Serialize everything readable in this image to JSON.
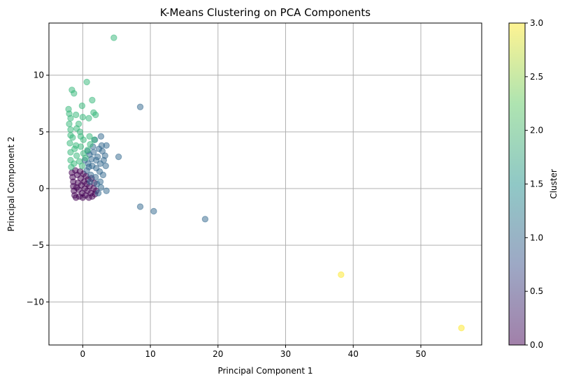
{
  "chart_data": {
    "type": "scatter",
    "title": "K-Means Clustering on PCA Components",
    "xlabel": "Principal Component 1",
    "ylabel": "Principal Component 2",
    "xlim": [
      -5,
      59
    ],
    "ylim": [
      -13.8,
      14.6
    ],
    "xticks": [
      0,
      10,
      20,
      30,
      40,
      50
    ],
    "xtick_labels": [
      "0",
      "10",
      "20",
      "30",
      "40",
      "50"
    ],
    "yticks": [
      -10,
      -5,
      0,
      5,
      10
    ],
    "ytick_labels": [
      "−10",
      "−5",
      "0",
      "5",
      "10"
    ],
    "grid": true,
    "point_alpha": 0.5,
    "colorbar": {
      "label": "Cluster",
      "range": [
        0.0,
        3.0
      ],
      "ticks": [
        0.0,
        0.5,
        1.0,
        1.5,
        2.0,
        2.5,
        3.0
      ],
      "tick_labels": [
        "0.0",
        "0.5",
        "1.0",
        "1.5",
        "2.0",
        "2.5",
        "3.0"
      ],
      "colormap": "viridis",
      "stops": [
        "#440154",
        "#3b528b",
        "#21918c",
        "#5ec962",
        "#fde725"
      ]
    },
    "cluster_colors": {
      "0": "#440154",
      "1": "#31688e",
      "2": "#35b779",
      "3": "#fde725"
    },
    "clusters": [
      {
        "cluster": 0,
        "points": [
          [
            -1.6,
            1.4
          ],
          [
            -1.5,
            1.0
          ],
          [
            -1.4,
            0.6
          ],
          [
            -1.4,
            0.2
          ],
          [
            -1.3,
            -0.2
          ],
          [
            -1.2,
            -0.6
          ],
          [
            -1.0,
            -0.8
          ],
          [
            -0.8,
            1.2
          ],
          [
            -0.7,
            0.5
          ],
          [
            -0.6,
            -0.1
          ],
          [
            -0.5,
            -0.7
          ],
          [
            -0.3,
            0.9
          ],
          [
            -0.2,
            0.3
          ],
          [
            -0.1,
            -0.4
          ],
          [
            0.0,
            -0.8
          ],
          [
            0.2,
            0.6
          ],
          [
            0.3,
            0.0
          ],
          [
            0.4,
            -0.6
          ],
          [
            0.6,
            0.4
          ],
          [
            0.7,
            -0.2
          ],
          [
            0.9,
            -0.8
          ],
          [
            1.0,
            0.2
          ],
          [
            1.2,
            -0.4
          ],
          [
            1.4,
            -0.7
          ],
          [
            1.6,
            0.0
          ],
          [
            1.8,
            -0.5
          ],
          [
            -1.1,
            1.6
          ],
          [
            -0.4,
            1.5
          ],
          [
            0.5,
            1.1
          ],
          [
            1.3,
            0.9
          ],
          [
            -0.9,
            0.1
          ],
          [
            0.1,
            1.3
          ],
          [
            0.8,
            0.8
          ],
          [
            1.7,
            0.5
          ],
          [
            2.0,
            -0.2
          ]
        ]
      },
      {
        "cluster": 1,
        "points": [
          [
            8.5,
            7.2
          ],
          [
            2.7,
            4.6
          ],
          [
            5.3,
            2.8
          ],
          [
            3.5,
            3.8
          ],
          [
            2.4,
            3.5
          ],
          [
            1.8,
            4.3
          ],
          [
            0.8,
            2.2
          ],
          [
            1.4,
            2.0
          ],
          [
            2.0,
            1.8
          ],
          [
            2.6,
            2.2
          ],
          [
            3.1,
            2.5
          ],
          [
            3.4,
            2.0
          ],
          [
            0.6,
            1.6
          ],
          [
            1.2,
            1.2
          ],
          [
            1.9,
            1.0
          ],
          [
            2.5,
            1.5
          ],
          [
            0.3,
            2.5
          ],
          [
            1.0,
            3.0
          ],
          [
            1.6,
            3.2
          ],
          [
            2.2,
            2.8
          ],
          [
            2.9,
            3.3
          ],
          [
            3.3,
            2.9
          ],
          [
            1.1,
            0.6
          ],
          [
            2.1,
            0.4
          ],
          [
            2.6,
            0.6
          ],
          [
            3.0,
            1.2
          ],
          [
            2.3,
            -0.4
          ],
          [
            3.5,
            -0.2
          ],
          [
            2.7,
            0.1
          ],
          [
            8.5,
            -1.6
          ],
          [
            10.5,
            -2.0
          ],
          [
            18.1,
            -2.7
          ],
          [
            2.0,
            2.5
          ],
          [
            1.5,
            3.7
          ],
          [
            0.7,
            3.3
          ],
          [
            2.8,
            3.8
          ],
          [
            1.3,
            2.6
          ],
          [
            0.9,
            1.9
          ]
        ]
      },
      {
        "cluster": 2,
        "points": [
          [
            4.6,
            13.3
          ],
          [
            0.6,
            9.4
          ],
          [
            -1.6,
            8.7
          ],
          [
            -1.3,
            8.4
          ],
          [
            1.4,
            7.8
          ],
          [
            -2.1,
            7.0
          ],
          [
            -0.1,
            7.3
          ],
          [
            -2.0,
            6.6
          ],
          [
            -1.0,
            6.5
          ],
          [
            1.6,
            6.7
          ],
          [
            1.9,
            6.5
          ],
          [
            -1.8,
            6.2
          ],
          [
            0.0,
            6.3
          ],
          [
            0.9,
            6.2
          ],
          [
            -2.0,
            5.7
          ],
          [
            -0.6,
            5.7
          ],
          [
            -1.8,
            5.2
          ],
          [
            -0.9,
            5.3
          ],
          [
            -0.4,
            5.0
          ],
          [
            -1.8,
            4.7
          ],
          [
            -0.3,
            4.6
          ],
          [
            1.0,
            4.6
          ],
          [
            1.7,
            4.3
          ],
          [
            0.1,
            4.3
          ],
          [
            -1.9,
            4.0
          ],
          [
            -1.0,
            3.8
          ],
          [
            -0.3,
            3.7
          ],
          [
            1.1,
            3.9
          ],
          [
            -1.8,
            3.2
          ],
          [
            -0.9,
            2.9
          ],
          [
            0.1,
            3.1
          ],
          [
            0.7,
            3.4
          ],
          [
            -1.8,
            2.5
          ],
          [
            -1.3,
            2.2
          ],
          [
            -0.5,
            2.4
          ],
          [
            -1.7,
            1.9
          ],
          [
            -1.2,
            3.5
          ],
          [
            -1.5,
            4.5
          ],
          [
            0.4,
            2.7
          ],
          [
            -0.1,
            2.0
          ]
        ]
      },
      {
        "cluster": 3,
        "points": [
          [
            38.2,
            -7.6
          ],
          [
            56.0,
            -12.3
          ]
        ]
      }
    ]
  }
}
